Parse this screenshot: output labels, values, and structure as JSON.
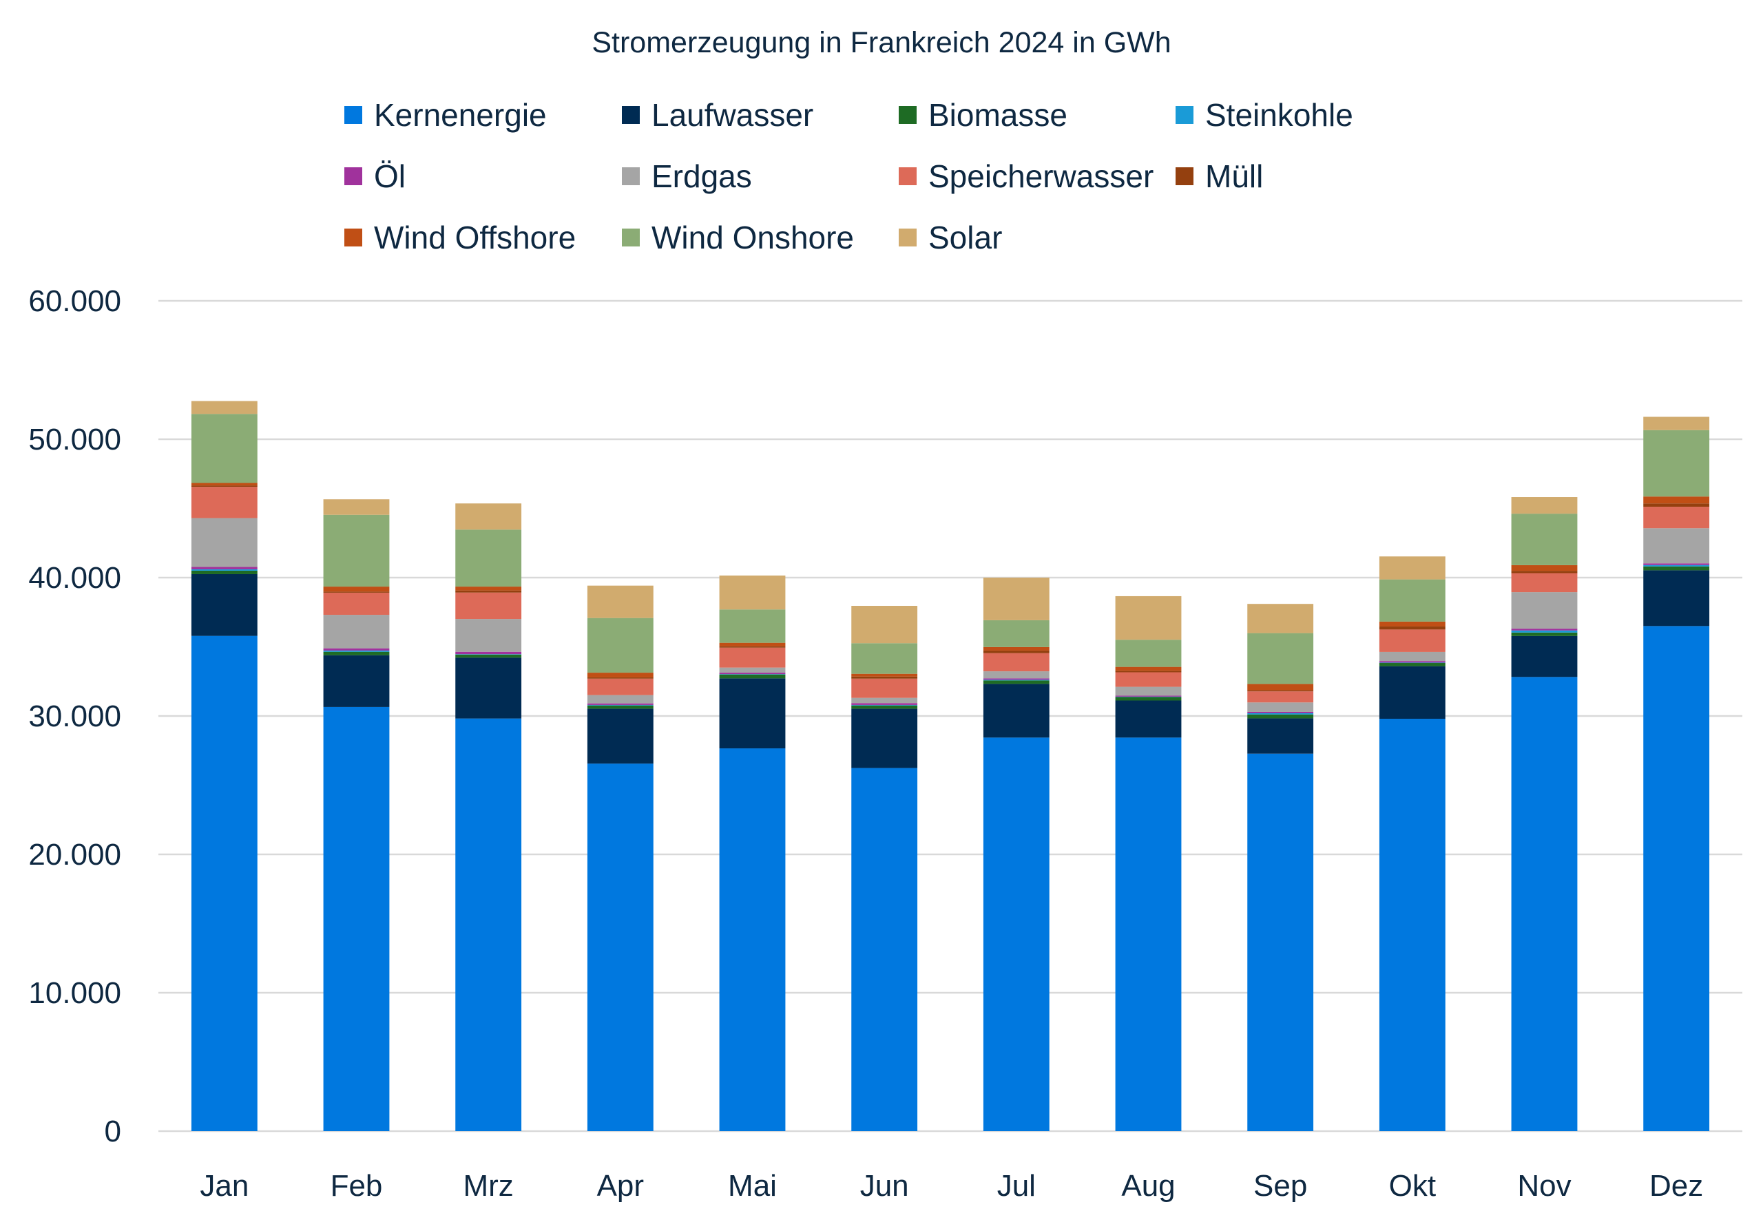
{
  "chart_data": {
    "type": "bar",
    "stacked": true,
    "title": "Stromerzeugung in Frankreich 2024 in GWh",
    "xlabel": "",
    "ylabel": "",
    "ylim": [
      0,
      60000
    ],
    "yticks": [
      "0",
      "10.000",
      "20.000",
      "30.000",
      "40.000",
      "50.000",
      "60.000"
    ],
    "ytick_values": [
      0,
      10000,
      20000,
      30000,
      40000,
      50000,
      60000
    ],
    "grid": true,
    "legend_position": "top",
    "categories": [
      "Jan",
      "Feb",
      "Mrz",
      "Apr",
      "Mai",
      "Jun",
      "Jul",
      "Aug",
      "Sep",
      "Okt",
      "Nov",
      "Dez"
    ],
    "series": [
      {
        "name": "Kernenergie",
        "color": "#0078DF",
        "values": [
          35790,
          30650,
          29820,
          26560,
          27660,
          26240,
          28440,
          28440,
          27280,
          29800,
          32820,
          36500
        ]
      },
      {
        "name": "Laufwasser",
        "color": "#002B53",
        "values": [
          4460,
          3740,
          4400,
          3970,
          5060,
          4290,
          3880,
          2680,
          2550,
          3800,
          2960,
          4030
        ]
      },
      {
        "name": "Biomasse",
        "color": "#1E6B24",
        "values": [
          250,
          250,
          220,
          230,
          280,
          230,
          250,
          250,
          280,
          230,
          250,
          280
        ]
      },
      {
        "name": "Steinkohle",
        "color": "#1A9BD7",
        "values": [
          100,
          90,
          30,
          40,
          30,
          40,
          50,
          30,
          90,
          30,
          150,
          100
        ]
      },
      {
        "name": "Öl",
        "color": "#A0329C",
        "values": [
          170,
          160,
          170,
          110,
          100,
          130,
          100,
          70,
          100,
          110,
          130,
          120
        ]
      },
      {
        "name": "Erdgas",
        "color": "#A5A5A5",
        "values": [
          3530,
          2420,
          2370,
          600,
          370,
          380,
          510,
          640,
          680,
          660,
          2640,
          2540
        ]
      },
      {
        "name": "Speicherwasser",
        "color": "#DD6A58",
        "values": [
          2260,
          1600,
          1910,
          1190,
          1440,
          1390,
          1310,
          1050,
          800,
          1620,
          1370,
          1550
        ]
      },
      {
        "name": "Müll",
        "color": "#94400F",
        "values": [
          100,
          80,
          150,
          90,
          100,
          150,
          190,
          110,
          80,
          220,
          170,
          240
        ]
      },
      {
        "name": "Wind Offshore",
        "color": "#C04F15",
        "values": [
          180,
          360,
          280,
          340,
          250,
          200,
          250,
          280,
          450,
          350,
          410,
          500
        ]
      },
      {
        "name": "Wind Onshore",
        "color": "#8BAC75",
        "values": [
          4990,
          5190,
          4120,
          3950,
          2410,
          2210,
          1940,
          1960,
          3680,
          3050,
          3720,
          4800
        ]
      },
      {
        "name": "Solar",
        "color": "#D1AB6E",
        "values": [
          930,
          1120,
          1890,
          2340,
          2450,
          2700,
          3080,
          3150,
          2110,
          1660,
          1200,
          960
        ]
      }
    ]
  }
}
